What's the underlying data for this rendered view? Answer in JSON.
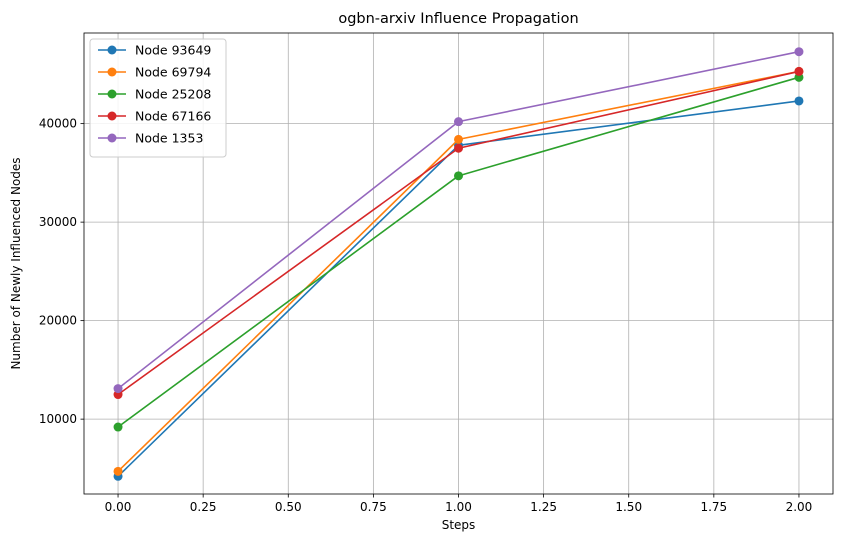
{
  "chart_data": {
    "type": "line",
    "title": "ogbn-arxiv Influence Propagation",
    "xlabel": "Steps",
    "ylabel": "Number of Newly Influenced Nodes",
    "xlim": [
      -0.1,
      2.1
    ],
    "ylim": [
      2400,
      49200
    ],
    "xticks": [
      0.0,
      0.25,
      0.5,
      0.75,
      1.0,
      1.25,
      1.5,
      1.75,
      2.0
    ],
    "xtick_labels": [
      "0.00",
      "0.25",
      "0.50",
      "0.75",
      "1.00",
      "1.25",
      "1.50",
      "1.75",
      "2.00"
    ],
    "yticks": [
      10000,
      20000,
      30000,
      40000
    ],
    "ytick_labels": [
      "10000",
      "20000",
      "30000",
      "40000"
    ],
    "grid": true,
    "legend_position": "top-left",
    "x": [
      0,
      1,
      2
    ],
    "series": [
      {
        "name": "Node 93649",
        "color": "#1f77b4",
        "values": [
          4200,
          37800,
          42300
        ]
      },
      {
        "name": "Node 69794",
        "color": "#ff7f0e",
        "values": [
          4700,
          38400,
          45300
        ]
      },
      {
        "name": "Node 25208",
        "color": "#2ca02c",
        "values": [
          9200,
          34700,
          44700
        ]
      },
      {
        "name": "Node 67166",
        "color": "#d62728",
        "values": [
          12500,
          37500,
          45300
        ]
      },
      {
        "name": "Node 1353",
        "color": "#9467bd",
        "values": [
          13100,
          40200,
          47300
        ]
      }
    ]
  }
}
